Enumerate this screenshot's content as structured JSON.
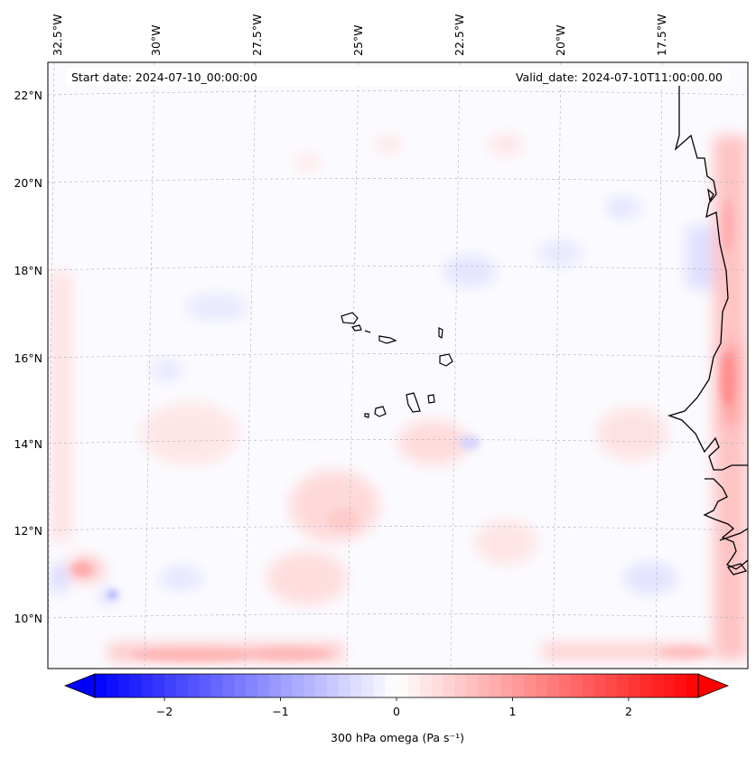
{
  "map": {
    "start_date_label": "Start date: 2024-07-10_00:00:00",
    "valid_date_label": "Valid_date: 2024-07-10T11:00:00.00",
    "lon_labels": [
      {
        "lon": -32.5,
        "text": "32.5°W"
      },
      {
        "lon": -30.0,
        "text": "30°W"
      },
      {
        "lon": -27.5,
        "text": "27.5°W"
      },
      {
        "lon": -25.0,
        "text": "25°W"
      },
      {
        "lon": -22.5,
        "text": "22.5°W"
      },
      {
        "lon": -20.0,
        "text": "20°W"
      },
      {
        "lon": -17.5,
        "text": "17.5°W"
      }
    ],
    "lat_labels": [
      {
        "lat": 22,
        "text": "22°N"
      },
      {
        "lat": 20,
        "text": "20°N"
      },
      {
        "lat": 18,
        "text": "18°N"
      },
      {
        "lat": 16,
        "text": "16°N"
      },
      {
        "lat": 14,
        "text": "14°N"
      },
      {
        "lat": 12,
        "text": "12°N"
      },
      {
        "lat": 10,
        "text": "10°N"
      }
    ],
    "colors": {
      "negative": "#0000ff",
      "neutral": "#ffffff",
      "positive": "#ff0000",
      "coastline": "#000000",
      "gridline": "#b0b0c8"
    }
  },
  "colorbar": {
    "label": "300 hPa omega (Pa s⁻¹)",
    "range": [
      -2.6,
      2.6
    ],
    "ticks": [
      {
        "value": -2,
        "text": "−2"
      },
      {
        "value": -1,
        "text": "−1"
      },
      {
        "value": 0,
        "text": "0"
      },
      {
        "value": 1,
        "text": "1"
      },
      {
        "value": 2,
        "text": "2"
      }
    ],
    "levels": 52
  }
}
